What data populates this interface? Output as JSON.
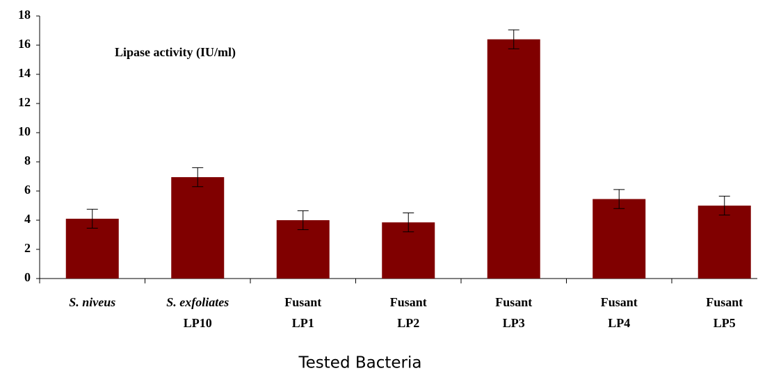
{
  "chart_data": {
    "type": "bar",
    "title": "Lipase activity (IU/ml)",
    "x_label": "Tested Bacteria",
    "categories": [
      [
        "S. niveus"
      ],
      [
        "S. exfoliates",
        "LP10"
      ],
      [
        "Fusant",
        "LP1"
      ],
      [
        "Fusant",
        "LP2"
      ],
      [
        "Fusant",
        "LP3"
      ],
      [
        "Fusant",
        "LP4"
      ],
      [
        "Fusant",
        "LP5"
      ]
    ],
    "values": [
      4.1,
      6.95,
      4.0,
      3.85,
      16.4,
      5.45,
      5.0
    ],
    "errors": [
      0.65,
      0.65,
      0.65,
      0.65,
      0.65,
      0.65,
      0.65
    ],
    "color": "#800000",
    "ylim": [
      0,
      18
    ],
    "yticks": [
      0,
      2,
      4,
      6,
      8,
      10,
      12,
      14,
      16,
      18
    ],
    "grid": false
  }
}
